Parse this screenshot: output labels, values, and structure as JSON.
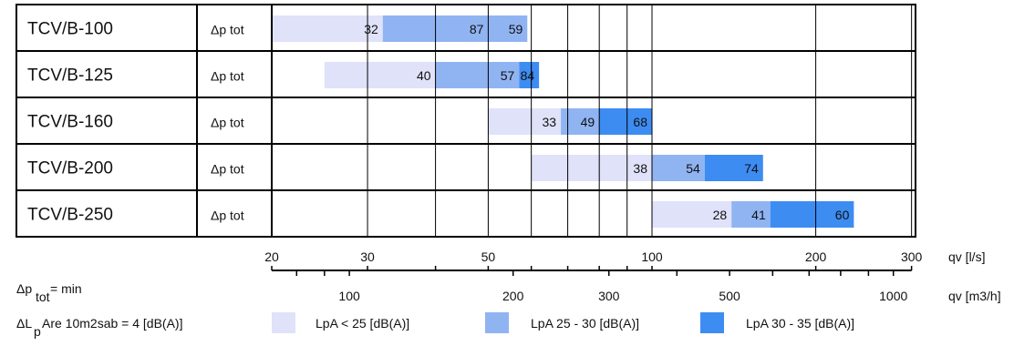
{
  "chart_data": {
    "type": "bar",
    "row_param_label": "Δp tot",
    "x_scale": "log",
    "x_axis_ls": {
      "unit_label": "qv [l/s]",
      "range": [
        20,
        300
      ],
      "ticks": [
        20,
        30,
        50,
        100,
        200,
        300
      ],
      "tick_labels": [
        "20",
        "30",
        "50",
        "100",
        "200",
        "300"
      ]
    },
    "x_axis_m3h": {
      "unit_label": "qv [m3/h]",
      "ticks": [
        100,
        200,
        300,
        500,
        1000
      ],
      "tick_labels": [
        "100",
        "200",
        "300",
        "500",
        "1000"
      ]
    },
    "rows": [
      {
        "name": "TCV/B-100",
        "start": 20,
        "b1": 32,
        "b2": 59,
        "end": 50,
        "labels": [
          "32",
          "59",
          "87"
        ]
      },
      {
        "name": "TCV/B-125",
        "start": 25,
        "b1": 40,
        "b2": 57,
        "end": 62,
        "labels": [
          "40",
          "57",
          "84"
        ]
      },
      {
        "name": "TCV/B-160",
        "start": 50,
        "b1": 68,
        "b2": 80,
        "end": 100,
        "labels": [
          "33",
          "49",
          "68"
        ]
      },
      {
        "name": "TCV/B-200",
        "start": 60,
        "b1": 100,
        "b2": 125,
        "end": 160,
        "labels": [
          "38",
          "54",
          "74"
        ]
      },
      {
        "name": "TCV/B-250",
        "start": 100,
        "b1": 140,
        "b2": 165,
        "end": 235,
        "labels": [
          "28",
          "41",
          "60"
        ]
      }
    ],
    "legend": [
      {
        "label": "LpA < 25 [dB(A)]",
        "color": "#dfe2f8"
      },
      {
        "label": "LpA 25 - 30 [dB(A)]",
        "color": "#90b4f2"
      },
      {
        "label": "LpA 30 - 35 [dB(A)]",
        "color": "#3d8cf2"
      }
    ],
    "notes": {
      "dp_main": "Δp",
      "dp_sub": "tot",
      "dp_suffix": " = min",
      "dl_main": "ΔL",
      "dl_sub": "p",
      "dl_suffix": "Are 10m2sab = 4 [dB(A)]"
    }
  }
}
